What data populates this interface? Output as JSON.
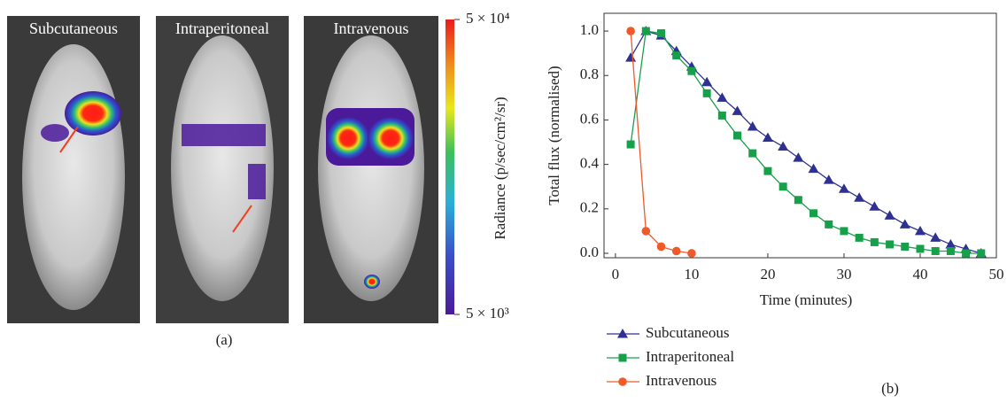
{
  "panel_a": {
    "image_labels": [
      "Subcutaneous",
      "Intraperitoneal",
      "Intravenous"
    ],
    "colorbar": {
      "max_label": "5 × 10⁴",
      "min_label": "5 × 10³",
      "title": "Radiance (p/sec/cm²/sr)"
    },
    "caption": "(a)"
  },
  "chart_data": {
    "type": "line",
    "x_label": "Time (minutes)",
    "y_label": "Total flux (normalised)",
    "caption": "(b)",
    "xlim": [
      -1.5,
      50
    ],
    "ylim": [
      -0.02,
      1.08
    ],
    "xticks": [
      0,
      10,
      20,
      30,
      40,
      50
    ],
    "yticks": [
      {
        "value": 0,
        "label": "0.0"
      },
      0.2,
      0.4,
      0.6,
      0.8,
      {
        "value": 1,
        "label": "1.0"
      }
    ],
    "series": [
      {
        "name": "Subcutaneous",
        "color": "#2e3192",
        "marker": "triangle",
        "x": [
          2,
          4,
          6,
          8,
          10,
          12,
          14,
          16,
          18,
          20,
          22,
          24,
          26,
          28,
          30,
          32,
          34,
          36,
          38,
          40,
          42,
          44,
          46,
          48
        ],
        "values": [
          0.88,
          1.0,
          0.98,
          0.91,
          0.84,
          0.77,
          0.7,
          0.64,
          0.57,
          0.52,
          0.48,
          0.43,
          0.38,
          0.33,
          0.29,
          0.25,
          0.21,
          0.17,
          0.13,
          0.1,
          0.07,
          0.04,
          0.02,
          0.0
        ]
      },
      {
        "name": "Intraperitoneal",
        "color": "#16a04a",
        "marker": "square",
        "x": [
          2,
          4,
          6,
          8,
          10,
          12,
          14,
          16,
          18,
          20,
          22,
          24,
          26,
          28,
          30,
          32,
          34,
          36,
          38,
          40,
          42,
          44,
          46,
          48
        ],
        "values": [
          0.49,
          1.0,
          0.99,
          0.89,
          0.82,
          0.72,
          0.62,
          0.53,
          0.45,
          0.37,
          0.3,
          0.24,
          0.18,
          0.13,
          0.1,
          0.07,
          0.05,
          0.04,
          0.03,
          0.02,
          0.01,
          0.01,
          0.0,
          0.0
        ]
      },
      {
        "name": "Intravenous",
        "color": "#ef5a2a",
        "marker": "circle",
        "x": [
          2,
          4,
          6,
          8,
          10
        ],
        "values": [
          1.0,
          0.1,
          0.03,
          0.01,
          0.0
        ]
      }
    ]
  }
}
